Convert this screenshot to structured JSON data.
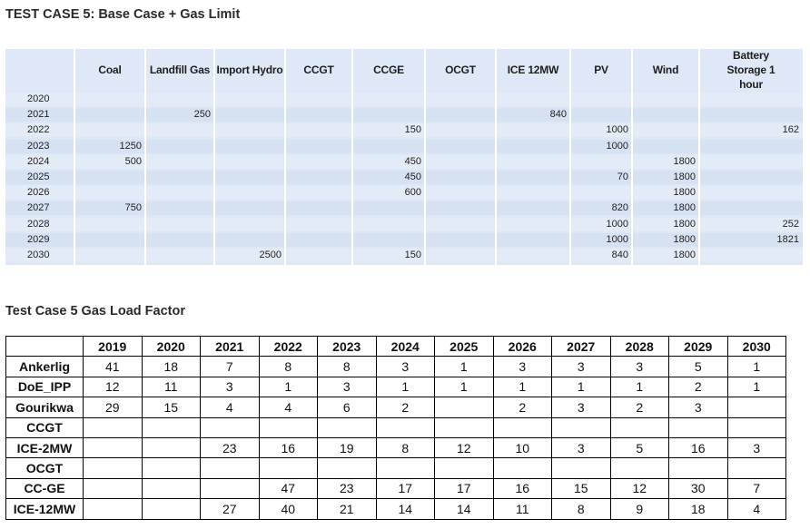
{
  "title1": "TEST CASE 5: Base Case + Gas Limit",
  "title2": "Test Case 5 Gas Load Factor",
  "table1": {
    "columns": [
      "Coal",
      "Landfill Gas",
      "Import Hydro",
      "CCGT",
      "CCGE",
      "OCGT",
      "ICE 12MW",
      "PV",
      "Wind",
      "Battery Storage 1 hour"
    ],
    "rows": [
      {
        "year": "2020",
        "values": [
          "",
          "",
          "",
          "",
          "",
          "",
          "",
          "",
          "",
          ""
        ]
      },
      {
        "year": "2021",
        "values": [
          "",
          "250",
          "",
          "",
          "",
          "",
          "840",
          "",
          "",
          ""
        ]
      },
      {
        "year": "2022",
        "values": [
          "",
          "",
          "",
          "",
          "150",
          "",
          "",
          "1000",
          "",
          "162"
        ]
      },
      {
        "year": "2023",
        "values": [
          "1250",
          "",
          "",
          "",
          "",
          "",
          "",
          "1000",
          "",
          ""
        ]
      },
      {
        "year": "2024",
        "values": [
          "500",
          "",
          "",
          "",
          "450",
          "",
          "",
          "",
          "1800",
          ""
        ]
      },
      {
        "year": "2025",
        "values": [
          "",
          "",
          "",
          "",
          "450",
          "",
          "",
          "70",
          "1800",
          ""
        ]
      },
      {
        "year": "2026",
        "values": [
          "",
          "",
          "",
          "",
          "600",
          "",
          "",
          "",
          "1800",
          ""
        ]
      },
      {
        "year": "2027",
        "values": [
          "750",
          "",
          "",
          "",
          "",
          "",
          "",
          "820",
          "1800",
          ""
        ]
      },
      {
        "year": "2028",
        "values": [
          "",
          "",
          "",
          "",
          "",
          "",
          "",
          "1000",
          "1800",
          "252"
        ]
      },
      {
        "year": "2029",
        "values": [
          "",
          "",
          "",
          "",
          "",
          "",
          "",
          "1000",
          "1800",
          "1821"
        ]
      },
      {
        "year": "2030",
        "values": [
          "",
          "",
          "2500",
          "",
          "150",
          "",
          "",
          "840",
          "1800",
          ""
        ]
      }
    ]
  },
  "table2": {
    "years": [
      "2019",
      "2020",
      "2021",
      "2022",
      "2023",
      "2024",
      "2025",
      "2026",
      "2027",
      "2028",
      "2029",
      "2030"
    ],
    "rows": [
      {
        "label": "Ankerlig",
        "values": [
          "41",
          "18",
          "7",
          "8",
          "8",
          "3",
          "1",
          "3",
          "3",
          "3",
          "5",
          "1"
        ]
      },
      {
        "label": "DoE_IPP",
        "values": [
          "12",
          "11",
          "3",
          "1",
          "3",
          "1",
          "1",
          "1",
          "1",
          "1",
          "2",
          "1"
        ]
      },
      {
        "label": "Gourikwa",
        "values": [
          "29",
          "15",
          "4",
          "4",
          "6",
          "2",
          "",
          "2",
          "3",
          "2",
          "3",
          ""
        ]
      },
      {
        "label": "CCGT",
        "values": [
          "",
          "",
          "",
          "",
          "",
          "",
          "",
          "",
          "",
          "",
          "",
          ""
        ]
      },
      {
        "label": "ICE-2MW",
        "values": [
          "",
          "",
          "23",
          "16",
          "19",
          "8",
          "12",
          "10",
          "3",
          "5",
          "16",
          "3"
        ]
      },
      {
        "label": "OCGT",
        "values": [
          "",
          "",
          "",
          "",
          "",
          "",
          "",
          "",
          "",
          "",
          "",
          ""
        ]
      },
      {
        "label": "CC-GE",
        "values": [
          "",
          "",
          "",
          "47",
          "23",
          "17",
          "17",
          "16",
          "15",
          "12",
          "30",
          "7"
        ]
      },
      {
        "label": "ICE-12MW",
        "values": [
          "",
          "",
          "27",
          "40",
          "21",
          "14",
          "14",
          "11",
          "8",
          "9",
          "18",
          "4"
        ]
      }
    ]
  }
}
